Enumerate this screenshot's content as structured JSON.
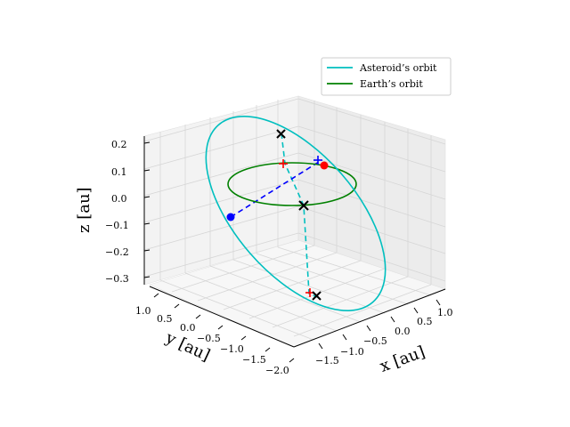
{
  "chart_data": {
    "type": "line",
    "projection": "3d",
    "xlabel": "x [au]",
    "ylabel": "y [au]",
    "zlabel": "z [au]",
    "x_ticks": [
      "−1.5",
      "−1.0",
      "−0.5",
      "0.0",
      "0.5",
      "1.0"
    ],
    "y_ticks": [
      "1.0",
      "0.5",
      "0.0",
      "−0.5",
      "−1.0",
      "−1.5",
      "−2.0"
    ],
    "z_ticks": [
      "0.2",
      "0.1",
      "0.0",
      "−0.1",
      "−0.2",
      "−0.3"
    ],
    "xlim": [
      -1.8,
      1.2
    ],
    "ylim": [
      -2.0,
      1.0
    ],
    "zlim": [
      -0.35,
      0.25
    ],
    "grid": true,
    "legend": {
      "placement": "top-right"
    },
    "series": [
      {
        "name": "Asteroid’s orbit",
        "color": "#00bfbf",
        "style": "solid"
      },
      {
        "name": "Earth’s orbit",
        "color": "#008000",
        "style": "solid"
      }
    ],
    "markers": {
      "red_points": "#ff0000",
      "blue_points": "#0000ff",
      "black_cross": "#000000"
    }
  }
}
